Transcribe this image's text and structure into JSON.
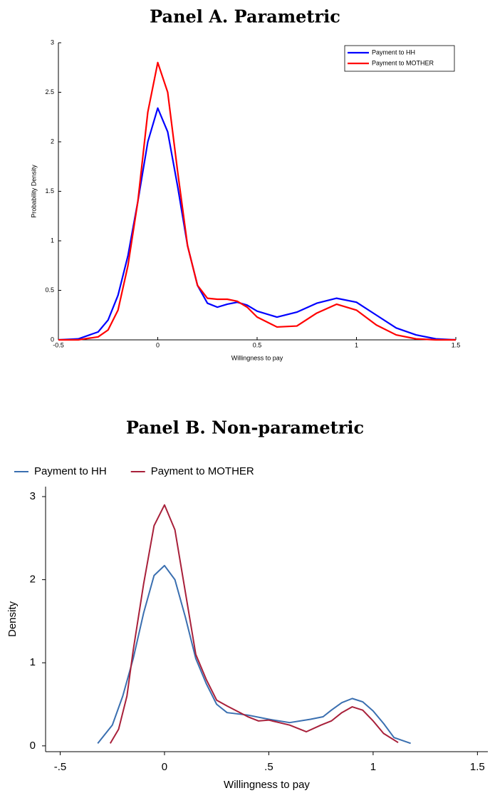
{
  "chart_data": [
    {
      "type": "line",
      "title": "Panel A. Parametric",
      "x_label": "Willingness to pay",
      "y_label": "Probability Density",
      "xlim": [
        -0.5,
        1.5
      ],
      "xticks": [
        -0.5,
        0,
        0.5,
        1,
        1.5
      ],
      "ylim": [
        0,
        3
      ],
      "yticks": [
        0,
        0.5,
        1,
        1.5,
        2,
        2.5,
        3
      ],
      "legend": "upper right",
      "grid": false,
      "series": [
        {
          "name": "Payment to HH",
          "color": "#0000ff",
          "x": [
            -0.5,
            -0.4,
            -0.3,
            -0.25,
            -0.2,
            -0.15,
            -0.1,
            -0.05,
            0,
            0.05,
            0.1,
            0.15,
            0.2,
            0.25,
            0.3,
            0.35,
            0.4,
            0.45,
            0.5,
            0.6,
            0.7,
            0.8,
            0.9,
            1.0,
            1.1,
            1.2,
            1.3,
            1.4,
            1.5
          ],
          "values": [
            0,
            0.01,
            0.08,
            0.2,
            0.45,
            0.85,
            1.4,
            2.0,
            2.34,
            2.1,
            1.55,
            0.95,
            0.55,
            0.37,
            0.33,
            0.36,
            0.38,
            0.35,
            0.29,
            0.23,
            0.28,
            0.37,
            0.42,
            0.38,
            0.25,
            0.12,
            0.05,
            0.01,
            0
          ]
        },
        {
          "name": "Payment to MOTHER",
          "color": "#ff0000",
          "x": [
            -0.5,
            -0.4,
            -0.3,
            -0.25,
            -0.2,
            -0.15,
            -0.1,
            -0.05,
            0,
            0.05,
            0.1,
            0.15,
            0.2,
            0.25,
            0.3,
            0.35,
            0.4,
            0.45,
            0.5,
            0.6,
            0.7,
            0.8,
            0.9,
            1.0,
            1.1,
            1.2,
            1.3,
            1.4,
            1.5
          ],
          "values": [
            0,
            0,
            0.03,
            0.1,
            0.3,
            0.75,
            1.4,
            2.3,
            2.8,
            2.5,
            1.7,
            0.95,
            0.55,
            0.42,
            0.41,
            0.41,
            0.39,
            0.33,
            0.23,
            0.13,
            0.14,
            0.27,
            0.36,
            0.3,
            0.15,
            0.05,
            0.01,
            0,
            0
          ]
        }
      ]
    },
    {
      "type": "line",
      "title": "Panel B. Non-parametric",
      "x_label": "Willingness to pay",
      "y_label": "Density",
      "xlim": [
        -0.57,
        1.55
      ],
      "xticks": [
        {
          "value": -0.5,
          "label": "-.5"
        },
        0,
        {
          "value": 0.5,
          "label": ".5"
        },
        1,
        1.5
      ],
      "ylim": [
        -0.07,
        3.12
      ],
      "yticks": [
        0,
        1,
        2,
        3
      ],
      "legend": "top",
      "grid": false,
      "series": [
        {
          "name": "Payment to HH",
          "color": "#3a6fb0",
          "x": [
            -0.32,
            -0.25,
            -0.2,
            -0.15,
            -0.1,
            -0.05,
            0,
            0.05,
            0.1,
            0.15,
            0.2,
            0.25,
            0.3,
            0.4,
            0.5,
            0.6,
            0.7,
            0.76,
            0.8,
            0.85,
            0.9,
            0.95,
            1.0,
            1.05,
            1.1,
            1.18
          ],
          "values": [
            0.03,
            0.25,
            0.6,
            1.05,
            1.6,
            2.05,
            2.17,
            2.0,
            1.55,
            1.05,
            0.75,
            0.5,
            0.4,
            0.37,
            0.32,
            0.28,
            0.32,
            0.35,
            0.43,
            0.52,
            0.57,
            0.53,
            0.42,
            0.27,
            0.1,
            0.03
          ]
        },
        {
          "name": "Payment to MOTHER",
          "color": "#a8203a",
          "x": [
            -0.26,
            -0.22,
            -0.18,
            -0.15,
            -0.1,
            -0.05,
            0,
            0.05,
            0.1,
            0.15,
            0.2,
            0.25,
            0.3,
            0.4,
            0.45,
            0.5,
            0.55,
            0.6,
            0.68,
            0.75,
            0.8,
            0.85,
            0.9,
            0.95,
            1.0,
            1.05,
            1.12
          ],
          "values": [
            0.03,
            0.2,
            0.6,
            1.15,
            1.95,
            2.65,
            2.9,
            2.6,
            1.85,
            1.1,
            0.8,
            0.55,
            0.48,
            0.35,
            0.3,
            0.31,
            0.28,
            0.25,
            0.17,
            0.25,
            0.3,
            0.4,
            0.47,
            0.43,
            0.3,
            0.15,
            0.04
          ]
        }
      ]
    }
  ]
}
